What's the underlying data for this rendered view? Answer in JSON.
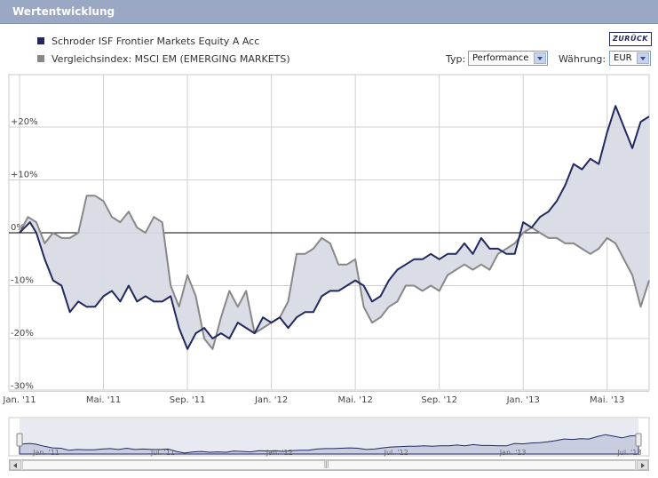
{
  "header": {
    "title": "Wertentwicklung"
  },
  "legend": [
    {
      "label": "Schroder ISF Frontier Markets Equity A Acc",
      "color": "#23295e"
    },
    {
      "label": "Vergleichsindex: MSCI EM (EMERGING MARKETS)",
      "color": "#888888"
    }
  ],
  "controls": {
    "back_label": "ZURÜCK",
    "typ_label": "Typ:",
    "typ_value": "Performance",
    "currency_label": "Währung:",
    "currency_value": "EUR"
  },
  "chart_data": {
    "type": "line",
    "title": "Wertentwicklung",
    "x_domain": [
      0,
      29
    ],
    "ylim": [
      -30,
      30
    ],
    "yticks": [
      -30,
      -20,
      -10,
      0,
      10,
      20
    ],
    "ytick_labels": [
      "-30%",
      "-20%",
      "-10%",
      "0%",
      "+10%",
      "+20%"
    ],
    "xticks": [
      0,
      4,
      8,
      12,
      16,
      20,
      24,
      28
    ],
    "xtick_labels": [
      "Jan. '11",
      "Mai. '11",
      "Sep. '11",
      "Jan. '12",
      "Mai. '12",
      "Sep. '12",
      "Jan. '13",
      "Mai. '13"
    ],
    "grid": true,
    "fill_between": true,
    "series": [
      {
        "name": "Schroder ISF Frontier Markets Equity A Acc",
        "color": "#23295e",
        "points": [
          [
            0,
            0
          ],
          [
            0.5,
            2
          ],
          [
            0.8,
            0
          ],
          [
            1.2,
            -5
          ],
          [
            1.6,
            -9
          ],
          [
            2.0,
            -10
          ],
          [
            2.4,
            -15
          ],
          [
            2.8,
            -13
          ],
          [
            3.2,
            -14
          ],
          [
            3.6,
            -14
          ],
          [
            4.0,
            -12
          ],
          [
            4.4,
            -11
          ],
          [
            4.8,
            -13
          ],
          [
            5.2,
            -10
          ],
          [
            5.6,
            -13
          ],
          [
            6.0,
            -12
          ],
          [
            6.4,
            -13
          ],
          [
            6.8,
            -13
          ],
          [
            7.2,
            -12
          ],
          [
            7.6,
            -18
          ],
          [
            8.0,
            -22
          ],
          [
            8.4,
            -19
          ],
          [
            8.8,
            -18
          ],
          [
            9.2,
            -20
          ],
          [
            9.6,
            -19
          ],
          [
            10.0,
            -20
          ],
          [
            10.4,
            -17
          ],
          [
            10.8,
            -18
          ],
          [
            11.2,
            -19
          ],
          [
            11.6,
            -16
          ],
          [
            12.0,
            -17
          ],
          [
            12.4,
            -16
          ],
          [
            12.8,
            -18
          ],
          [
            13.2,
            -16
          ],
          [
            13.6,
            -15
          ],
          [
            14.0,
            -15
          ],
          [
            14.4,
            -12
          ],
          [
            14.8,
            -11
          ],
          [
            15.2,
            -11
          ],
          [
            15.6,
            -10
          ],
          [
            16.0,
            -9
          ],
          [
            16.4,
            -10
          ],
          [
            16.8,
            -13
          ],
          [
            17.2,
            -12
          ],
          [
            17.6,
            -9
          ],
          [
            18.0,
            -7
          ],
          [
            18.4,
            -6
          ],
          [
            18.8,
            -5
          ],
          [
            19.2,
            -5
          ],
          [
            19.6,
            -4
          ],
          [
            20.0,
            -5
          ],
          [
            20.4,
            -4
          ],
          [
            20.8,
            -4
          ],
          [
            21.2,
            -2
          ],
          [
            21.6,
            -4
          ],
          [
            22.0,
            -1
          ],
          [
            22.4,
            -3
          ],
          [
            22.8,
            -3
          ],
          [
            23.2,
            -4
          ],
          [
            23.6,
            -4
          ],
          [
            24.0,
            2
          ],
          [
            24.4,
            1
          ],
          [
            24.8,
            3
          ],
          [
            25.2,
            4
          ],
          [
            25.6,
            6
          ],
          [
            26.0,
            9
          ],
          [
            26.4,
            13
          ],
          [
            26.8,
            12
          ],
          [
            27.2,
            14
          ],
          [
            27.6,
            13
          ],
          [
            28.0,
            19
          ],
          [
            28.4,
            24
          ],
          [
            28.8,
            20
          ],
          [
            29.2,
            16
          ],
          [
            29.6,
            21
          ],
          [
            30.0,
            22
          ]
        ]
      },
      {
        "name": "MSCI EM (EMERGING MARKETS)",
        "color": "#888888",
        "points": [
          [
            0,
            0
          ],
          [
            0.4,
            3
          ],
          [
            0.8,
            2
          ],
          [
            1.2,
            -2
          ],
          [
            1.6,
            0
          ],
          [
            2.0,
            -1
          ],
          [
            2.4,
            -1
          ],
          [
            2.8,
            0
          ],
          [
            3.2,
            7
          ],
          [
            3.6,
            7
          ],
          [
            4.0,
            6
          ],
          [
            4.4,
            3
          ],
          [
            4.8,
            2
          ],
          [
            5.2,
            4
          ],
          [
            5.6,
            1
          ],
          [
            6.0,
            0
          ],
          [
            6.4,
            3
          ],
          [
            6.8,
            2
          ],
          [
            7.2,
            -10
          ],
          [
            7.6,
            -14
          ],
          [
            8.0,
            -8
          ],
          [
            8.4,
            -12
          ],
          [
            8.8,
            -20
          ],
          [
            9.2,
            -22
          ],
          [
            9.6,
            -16
          ],
          [
            10.0,
            -11
          ],
          [
            10.4,
            -14
          ],
          [
            10.8,
            -11
          ],
          [
            11.2,
            -19
          ],
          [
            11.6,
            -18
          ],
          [
            12.0,
            -17
          ],
          [
            12.4,
            -16
          ],
          [
            12.8,
            -13
          ],
          [
            13.2,
            -4
          ],
          [
            13.6,
            -4
          ],
          [
            14.0,
            -3
          ],
          [
            14.4,
            -1
          ],
          [
            14.8,
            -2
          ],
          [
            15.2,
            -6
          ],
          [
            15.6,
            -6
          ],
          [
            16.0,
            -5
          ],
          [
            16.4,
            -14
          ],
          [
            16.8,
            -17
          ],
          [
            17.2,
            -16
          ],
          [
            17.6,
            -14
          ],
          [
            18.0,
            -13
          ],
          [
            18.4,
            -10
          ],
          [
            18.8,
            -10
          ],
          [
            19.2,
            -11
          ],
          [
            19.6,
            -10
          ],
          [
            20.0,
            -11
          ],
          [
            20.4,
            -8
          ],
          [
            20.8,
            -7
          ],
          [
            21.2,
            -6
          ],
          [
            21.6,
            -7
          ],
          [
            22.0,
            -6
          ],
          [
            22.4,
            -7
          ],
          [
            22.8,
            -4
          ],
          [
            23.2,
            -3
          ],
          [
            23.6,
            -2
          ],
          [
            24.0,
            0
          ],
          [
            24.4,
            1
          ],
          [
            24.8,
            0
          ],
          [
            25.2,
            -1
          ],
          [
            25.6,
            -1
          ],
          [
            26.0,
            -2
          ],
          [
            26.4,
            -2
          ],
          [
            26.8,
            -3
          ],
          [
            27.2,
            -4
          ],
          [
            27.6,
            -3
          ],
          [
            28.0,
            -1
          ],
          [
            28.4,
            -2
          ],
          [
            28.8,
            -5
          ],
          [
            29.2,
            -8
          ],
          [
            29.6,
            -14
          ],
          [
            30.0,
            -9
          ]
        ]
      }
    ]
  },
  "navigator": {
    "labels": [
      "Jan. '11",
      "Jul. '11",
      "Jan. '12",
      "Jul. '12",
      "Jan. '13",
      "Jul. '13"
    ]
  }
}
